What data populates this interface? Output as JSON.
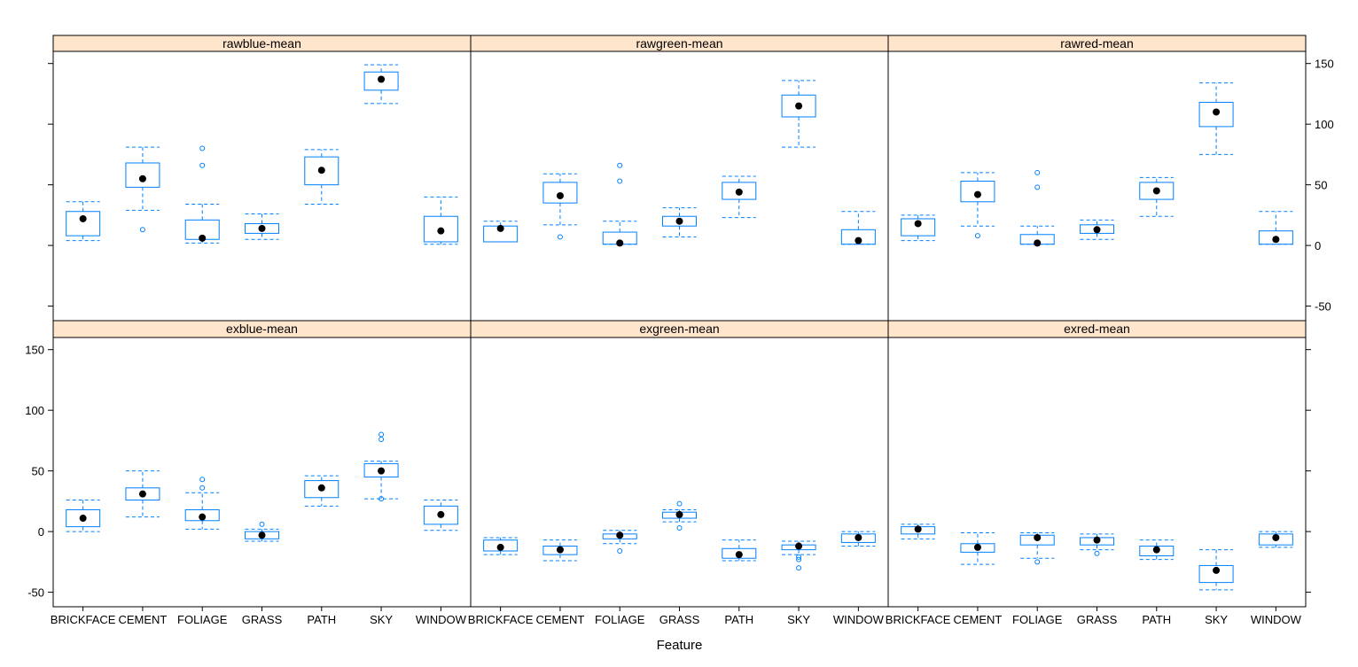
{
  "chart_data": {
    "type": "box",
    "xlabel": "Feature",
    "ylim": [
      -62,
      160
    ],
    "y_ticks": [
      -50,
      0,
      50,
      100,
      150
    ],
    "categories": [
      "BRICKFACE",
      "CEMENT",
      "FOLIAGE",
      "GRASS",
      "PATH",
      "SKY",
      "WINDOW"
    ],
    "colors": {
      "box": "#0080ff",
      "strip": "#ffe5cc",
      "median": "#000000"
    },
    "panels": [
      {
        "title": "rawblue-mean",
        "boxes": [
          {
            "low": 4,
            "q1": 8,
            "median": 22,
            "q3": 28,
            "high": 36,
            "outliers": []
          },
          {
            "low": 29,
            "q1": 48,
            "median": 55,
            "q3": 68,
            "high": 81,
            "outliers": [
              13
            ]
          },
          {
            "low": 2,
            "q1": 5,
            "median": 6,
            "q3": 21,
            "high": 34,
            "outliers": [
              66,
              80
            ]
          },
          {
            "low": 5,
            "q1": 10,
            "median": 14,
            "q3": 18,
            "high": 26,
            "outliers": []
          },
          {
            "low": 34,
            "q1": 50,
            "median": 62,
            "q3": 73,
            "high": 79,
            "outliers": []
          },
          {
            "low": 117,
            "q1": 128,
            "median": 137,
            "q3": 143,
            "high": 149,
            "outliers": []
          },
          {
            "low": 1,
            "q1": 3,
            "median": 12,
            "q3": 24,
            "high": 40,
            "outliers": []
          }
        ]
      },
      {
        "title": "rawgreen-mean",
        "boxes": [
          {
            "low": 3,
            "q1": 3,
            "median": 14,
            "q3": 16,
            "high": 20,
            "outliers": []
          },
          {
            "low": 17,
            "q1": 35,
            "median": 41,
            "q3": 52,
            "high": 59,
            "outliers": [
              7
            ]
          },
          {
            "low": 1,
            "q1": 1,
            "median": 2,
            "q3": 11,
            "high": 20,
            "outliers": [
              53,
              66
            ]
          },
          {
            "low": 7,
            "q1": 16,
            "median": 20,
            "q3": 24,
            "high": 31,
            "outliers": []
          },
          {
            "low": 23,
            "q1": 38,
            "median": 44,
            "q3": 52,
            "high": 57,
            "outliers": []
          },
          {
            "low": 81,
            "q1": 106,
            "median": 115,
            "q3": 124,
            "high": 136,
            "outliers": []
          },
          {
            "low": 1,
            "q1": 1,
            "median": 4,
            "q3": 13,
            "high": 28,
            "outliers": []
          }
        ]
      },
      {
        "title": "rawred-mean",
        "boxes": [
          {
            "low": 4,
            "q1": 8,
            "median": 18,
            "q3": 22,
            "high": 25,
            "outliers": []
          },
          {
            "low": 16,
            "q1": 36,
            "median": 42,
            "q3": 53,
            "high": 60,
            "outliers": [
              8
            ]
          },
          {
            "low": 1,
            "q1": 1,
            "median": 2,
            "q3": 9,
            "high": 16,
            "outliers": [
              48,
              60
            ]
          },
          {
            "low": 5,
            "q1": 10,
            "median": 13,
            "q3": 17,
            "high": 21,
            "outliers": []
          },
          {
            "low": 24,
            "q1": 38,
            "median": 45,
            "q3": 52,
            "high": 56,
            "outliers": []
          },
          {
            "low": 75,
            "q1": 98,
            "median": 110,
            "q3": 118,
            "high": 134,
            "outliers": []
          },
          {
            "low": 1,
            "q1": 1,
            "median": 5,
            "q3": 12,
            "high": 28,
            "outliers": []
          }
        ]
      },
      {
        "title": "exblue-mean",
        "boxes": [
          {
            "low": 0,
            "q1": 4,
            "median": 11,
            "q3": 18,
            "high": 26,
            "outliers": []
          },
          {
            "low": 12,
            "q1": 26,
            "median": 31,
            "q3": 36,
            "high": 50,
            "outliers": []
          },
          {
            "low": 2,
            "q1": 9,
            "median": 12,
            "q3": 18,
            "high": 32,
            "outliers": [
              36,
              43
            ]
          },
          {
            "low": -8,
            "q1": -6,
            "median": -3,
            "q3": 0,
            "high": 2,
            "outliers": [
              6
            ]
          },
          {
            "low": 21,
            "q1": 28,
            "median": 36,
            "q3": 42,
            "high": 46,
            "outliers": []
          },
          {
            "low": 27,
            "q1": 45,
            "median": 50,
            "q3": 56,
            "high": 58,
            "outliers": [
              27,
              76,
              80
            ]
          },
          {
            "low": 1,
            "q1": 6,
            "median": 14,
            "q3": 21,
            "high": 26,
            "outliers": []
          }
        ]
      },
      {
        "title": "exgreen-mean",
        "boxes": [
          {
            "low": -19,
            "q1": -16,
            "median": -13,
            "q3": -7,
            "high": -5,
            "outliers": []
          },
          {
            "low": -24,
            "q1": -19,
            "median": -15,
            "q3": -12,
            "high": -7,
            "outliers": []
          },
          {
            "low": -10,
            "q1": -6,
            "median": -3,
            "q3": -2,
            "high": 1,
            "outliers": [
              -16
            ]
          },
          {
            "low": 8,
            "q1": 11,
            "median": 14,
            "q3": 16,
            "high": 18,
            "outliers": [
              3,
              23
            ]
          },
          {
            "low": -24,
            "q1": -22,
            "median": -19,
            "q3": -14,
            "high": -7,
            "outliers": []
          },
          {
            "low": -19,
            "q1": -15,
            "median": -12,
            "q3": -11,
            "high": -8,
            "outliers": [
              -21,
              -23,
              -30
            ]
          },
          {
            "low": -12,
            "q1": -9,
            "median": -5,
            "q3": -2,
            "high": 0,
            "outliers": []
          }
        ]
      },
      {
        "title": "exred-mean",
        "boxes": [
          {
            "low": -6,
            "q1": -2,
            "median": 2,
            "q3": 4,
            "high": 6,
            "outliers": []
          },
          {
            "low": -27,
            "q1": -17,
            "median": -13,
            "q3": -10,
            "high": -1,
            "outliers": []
          },
          {
            "low": -22,
            "q1": -11,
            "median": -5,
            "q3": -3,
            "high": -1,
            "outliers": [
              -25
            ]
          },
          {
            "low": -15,
            "q1": -11,
            "median": -7,
            "q3": -5,
            "high": -2,
            "outliers": [
              -18
            ]
          },
          {
            "low": -23,
            "q1": -20,
            "median": -15,
            "q3": -12,
            "high": -7,
            "outliers": []
          },
          {
            "low": -48,
            "q1": -42,
            "median": -32,
            "q3": -28,
            "high": -15,
            "outliers": []
          },
          {
            "low": -13,
            "q1": -11,
            "median": -5,
            "q3": -2,
            "high": 0,
            "outliers": []
          }
        ]
      }
    ]
  }
}
